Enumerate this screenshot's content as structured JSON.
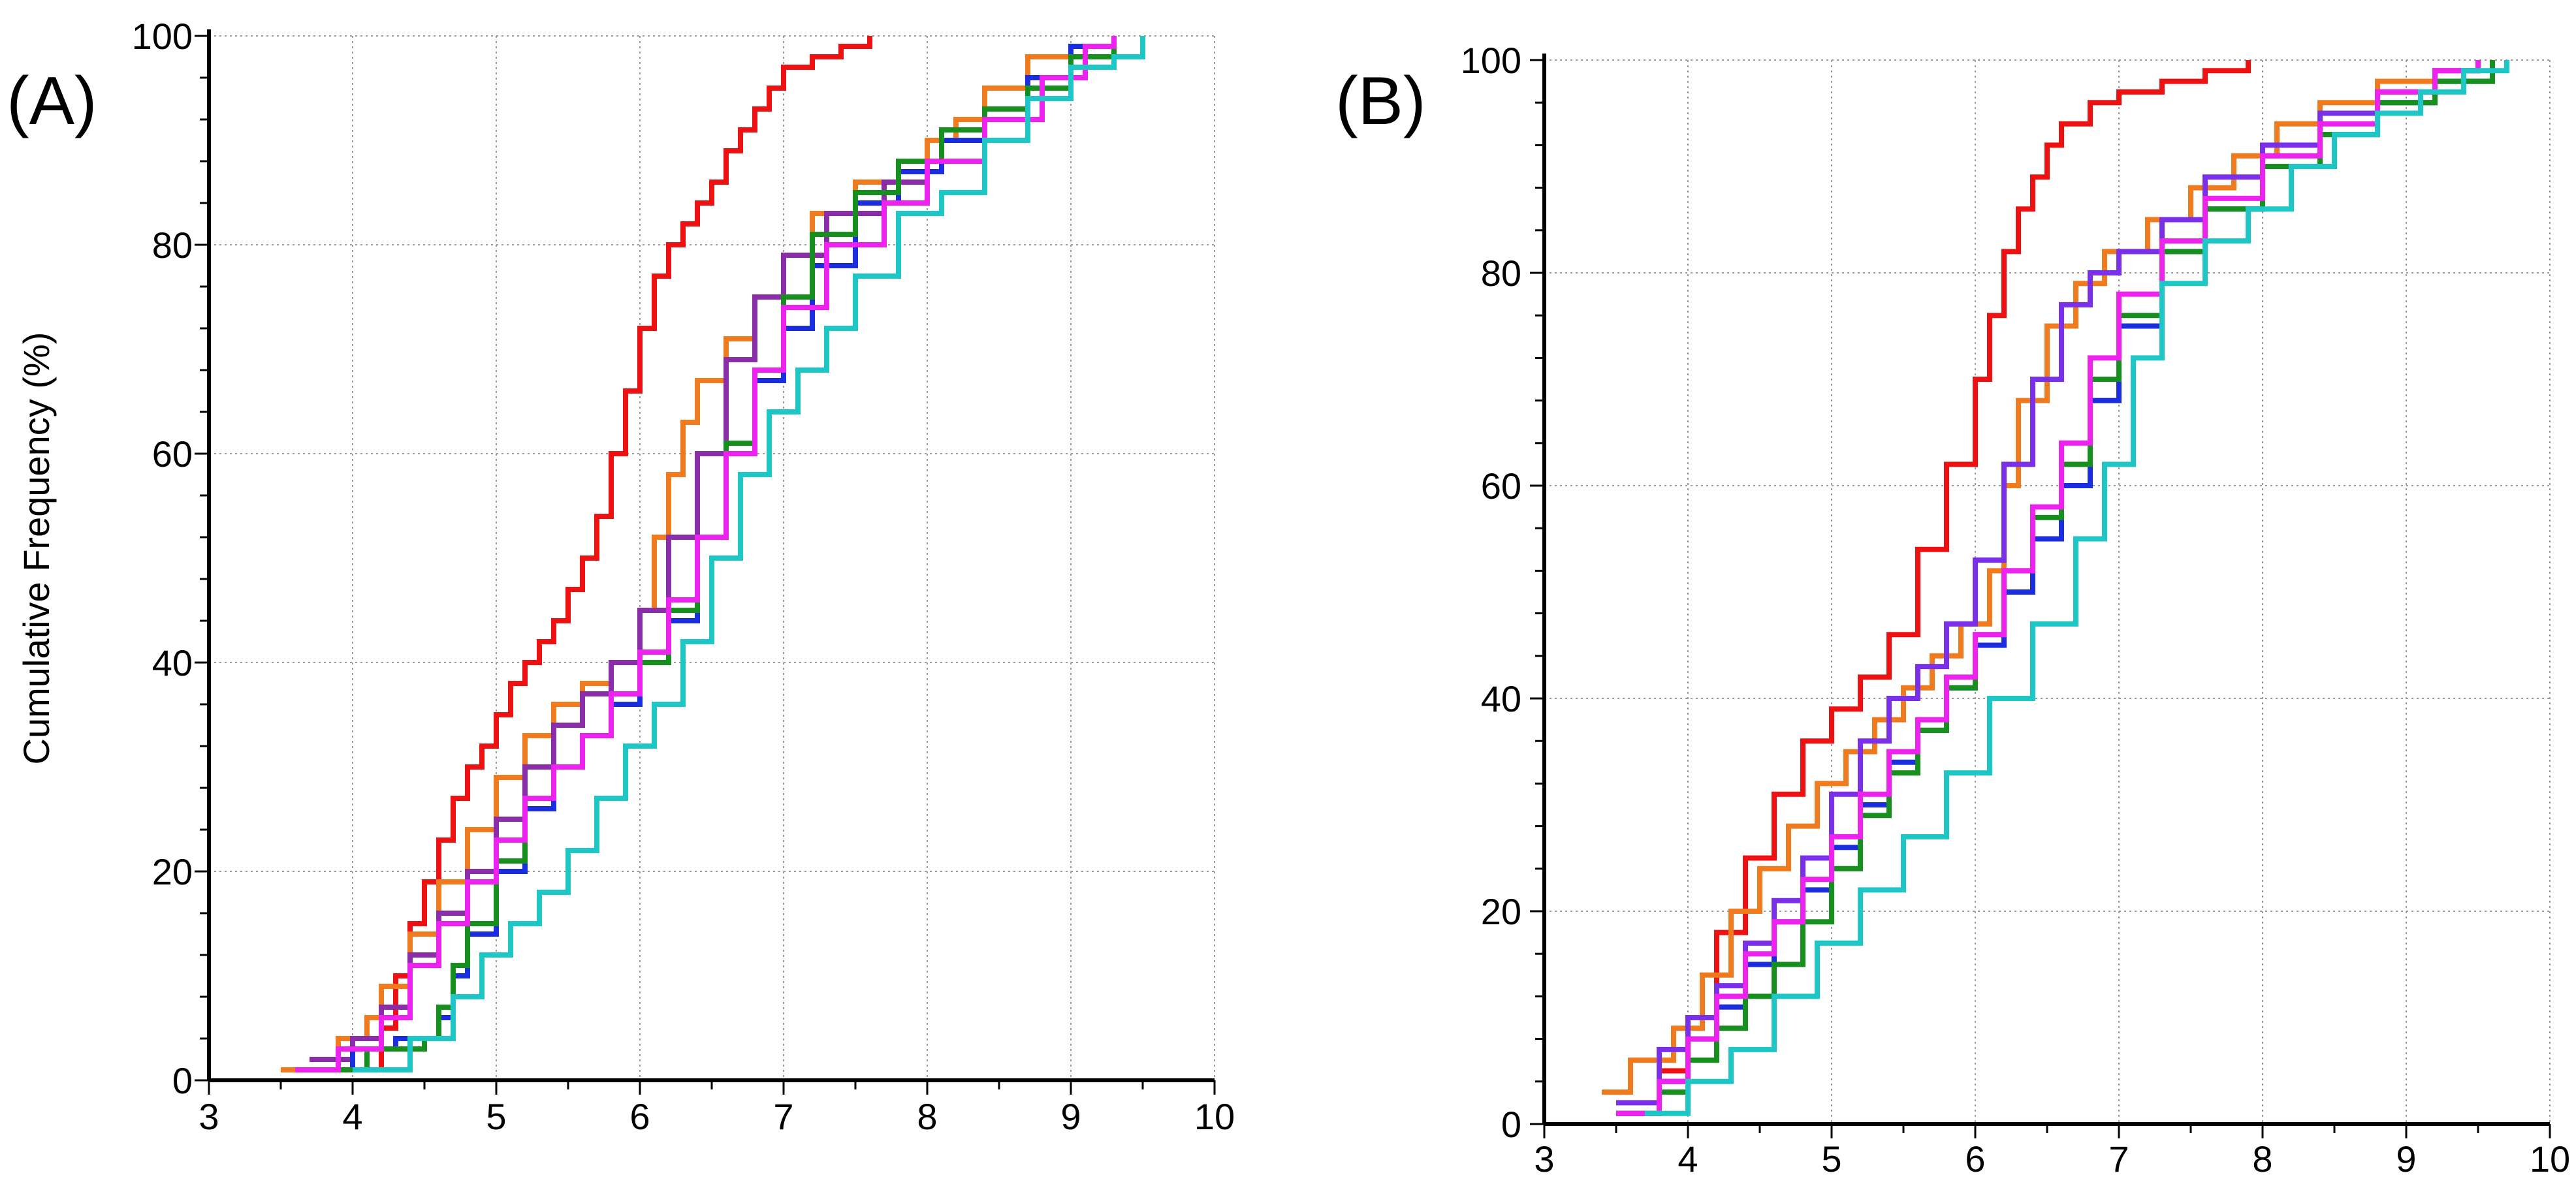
{
  "figure_title": "",
  "chart_data": [
    {
      "type": "line",
      "panel_label": "(A)",
      "xlabel": "",
      "ylabel": "Cumulative Frequency (%)",
      "xlim": [
        3,
        10
      ],
      "ylim": [
        0,
        100
      ],
      "x_ticks": [
        3,
        4,
        5,
        6,
        7,
        8,
        9,
        10
      ],
      "y_ticks": [
        0,
        20,
        40,
        60,
        80,
        100
      ],
      "x_tick_labels": [
        "3",
        "4",
        "5",
        "6",
        "7",
        "8",
        "9",
        "10"
      ],
      "y_tick_labels": [
        "0",
        "20",
        "40",
        "60",
        "80",
        "100"
      ],
      "grid": true,
      "series": [
        {
          "name": "red",
          "color": "#ee1111",
          "x": [
            3.9,
            4.2,
            4.3,
            4.4,
            4.5,
            4.6,
            4.7,
            4.8,
            4.9,
            5.0,
            5.1,
            5.2,
            5.3,
            5.4,
            5.5,
            5.6,
            5.7,
            5.8,
            5.9,
            6.0,
            6.1,
            6.2,
            6.3,
            6.4,
            6.5,
            6.6,
            6.7,
            6.8,
            6.9,
            7.0,
            7.2,
            7.4,
            7.6
          ],
          "y": [
            1,
            5,
            10,
            15,
            19,
            23,
            27,
            30,
            32,
            35,
            38,
            40,
            42,
            44,
            47,
            50,
            54,
            60,
            66,
            72,
            77,
            80,
            82,
            84,
            86,
            89,
            91,
            93,
            95,
            97,
            98,
            99,
            100
          ]
        },
        {
          "name": "orange",
          "color": "#f07a1e",
          "x": [
            3.5,
            3.9,
            4.1,
            4.2,
            4.4,
            4.6,
            4.8,
            5.0,
            5.2,
            5.4,
            5.6,
            5.8,
            6.0,
            6.1,
            6.2,
            6.3,
            6.4,
            6.6,
            6.8,
            7.0,
            7.2,
            7.5,
            7.8,
            8.0,
            8.2,
            8.4,
            8.7,
            9.0,
            9.3
          ],
          "y": [
            1,
            4,
            6,
            9,
            14,
            19,
            24,
            29,
            33,
            36,
            38,
            40,
            45,
            52,
            58,
            63,
            67,
            71,
            75,
            79,
            83,
            86,
            88,
            90,
            92,
            95,
            98,
            99,
            100
          ]
        },
        {
          "name": "purple",
          "color": "#8b2ca8",
          "x": [
            3.7,
            4.0,
            4.2,
            4.4,
            4.6,
            4.8,
            5.0,
            5.2,
            5.4,
            5.6,
            5.8,
            6.0,
            6.2,
            6.4,
            6.6,
            6.8,
            7.0,
            7.3,
            7.7,
            8.0,
            8.4,
            8.8,
            9.1,
            9.3
          ],
          "y": [
            2,
            4,
            7,
            12,
            16,
            20,
            25,
            30,
            34,
            37,
            40,
            45,
            52,
            60,
            69,
            75,
            79,
            83,
            86,
            88,
            92,
            96,
            99,
            100
          ]
        },
        {
          "name": "blue",
          "color": "#1a2ee0",
          "x": [
            3.8,
            4.0,
            4.3,
            4.6,
            4.7,
            4.8,
            5.0,
            5.2,
            5.4,
            5.6,
            5.8,
            6.0,
            6.2,
            6.4,
            6.6,
            6.8,
            7.0,
            7.2,
            7.5,
            7.8,
            8.1,
            8.4,
            8.7,
            9.0,
            9.3
          ],
          "y": [
            1,
            3,
            4,
            6,
            10,
            14,
            20,
            26,
            30,
            33,
            36,
            40,
            44,
            52,
            60,
            67,
            72,
            78,
            84,
            87,
            90,
            93,
            96,
            99,
            100
          ]
        },
        {
          "name": "green",
          "color": "#178f1f",
          "x": [
            3.9,
            4.1,
            4.3,
            4.5,
            4.6,
            4.7,
            4.8,
            5.0,
            5.2,
            5.4,
            5.6,
            5.8,
            6.0,
            6.2,
            6.4,
            6.6,
            6.8,
            7.0,
            7.2,
            7.5,
            7.8,
            8.1,
            8.4,
            8.7,
            9.0,
            9.3
          ],
          "y": [
            1,
            3,
            3,
            4,
            7,
            11,
            15,
            21,
            27,
            30,
            33,
            37,
            40,
            45,
            52,
            61,
            68,
            75,
            81,
            85,
            88,
            91,
            93,
            95,
            98,
            100
          ]
        },
        {
          "name": "magenta",
          "color": "#ee22ee",
          "x": [
            3.6,
            3.9,
            4.2,
            4.4,
            4.6,
            4.8,
            5.0,
            5.2,
            5.4,
            5.6,
            5.8,
            6.0,
            6.2,
            6.4,
            6.6,
            6.8,
            7.0,
            7.3,
            7.7,
            8.0,
            8.4,
            8.8,
            9.1,
            9.3
          ],
          "y": [
            1,
            3,
            6,
            11,
            15,
            19,
            23,
            27,
            30,
            33,
            37,
            41,
            46,
            52,
            60,
            68,
            74,
            80,
            84,
            88,
            92,
            96,
            99,
            100
          ]
        },
        {
          "name": "cyan",
          "color": "#1ec6c6",
          "x": [
            4.0,
            4.4,
            4.7,
            4.9,
            5.1,
            5.3,
            5.5,
            5.7,
            5.9,
            6.1,
            6.3,
            6.5,
            6.7,
            6.9,
            7.1,
            7.3,
            7.5,
            7.8,
            8.1,
            8.4,
            8.7,
            9.0,
            9.3,
            9.5
          ],
          "y": [
            1,
            4,
            8,
            12,
            15,
            18,
            22,
            27,
            32,
            36,
            42,
            50,
            58,
            64,
            68,
            72,
            77,
            83,
            85,
            90,
            94,
            97,
            98,
            100
          ]
        }
      ]
    },
    {
      "type": "line",
      "panel_label": "(B)",
      "xlabel": "",
      "ylabel": "",
      "xlim": [
        3,
        10
      ],
      "ylim": [
        0,
        100
      ],
      "x_ticks": [
        3,
        4,
        5,
        6,
        7,
        8,
        9,
        10
      ],
      "y_ticks": [
        0,
        20,
        40,
        60,
        80,
        100
      ],
      "x_tick_labels": [
        "3",
        "4",
        "5",
        "6",
        "7",
        "8",
        "9",
        "10"
      ],
      "y_tick_labels": [
        "0",
        "20",
        "40",
        "60",
        "80",
        "100"
      ],
      "grid": true,
      "series": [
        {
          "name": "red",
          "color": "#ee1111",
          "x": [
            3.5,
            3.8,
            4.0,
            4.2,
            4.4,
            4.6,
            4.8,
            5.0,
            5.2,
            5.4,
            5.6,
            5.8,
            6.0,
            6.1,
            6.2,
            6.3,
            6.4,
            6.5,
            6.6,
            6.8,
            7.0,
            7.3,
            7.6,
            7.9
          ],
          "y": [
            1,
            5,
            10,
            18,
            25,
            31,
            36,
            39,
            42,
            46,
            54,
            62,
            70,
            76,
            82,
            86,
            89,
            92,
            94,
            96,
            97,
            98,
            99,
            100
          ]
        },
        {
          "name": "orange",
          "color": "#f07a1e",
          "x": [
            3.4,
            3.6,
            3.9,
            4.1,
            4.3,
            4.5,
            4.7,
            4.9,
            5.1,
            5.3,
            5.5,
            5.7,
            5.9,
            6.1,
            6.2,
            6.3,
            6.5,
            6.7,
            6.9,
            7.2,
            7.5,
            7.8,
            8.1,
            8.4,
            8.8,
            9.2,
            9.5
          ],
          "y": [
            3,
            6,
            9,
            14,
            20,
            24,
            28,
            32,
            35,
            38,
            41,
            44,
            47,
            52,
            60,
            68,
            75,
            79,
            82,
            85,
            88,
            91,
            94,
            96,
            98,
            99,
            100
          ]
        },
        {
          "name": "purple",
          "color": "#7a2fe8",
          "x": [
            3.5,
            3.8,
            4.0,
            4.2,
            4.4,
            4.6,
            4.8,
            5.0,
            5.2,
            5.4,
            5.6,
            5.8,
            6.0,
            6.2,
            6.4,
            6.6,
            6.8,
            7.0,
            7.3,
            7.6,
            8.0,
            8.4,
            8.8,
            9.2,
            9.5
          ],
          "y": [
            2,
            7,
            10,
            13,
            17,
            21,
            25,
            31,
            36,
            40,
            43,
            47,
            53,
            62,
            70,
            77,
            80,
            82,
            85,
            89,
            92,
            95,
            97,
            99,
            100
          ]
        },
        {
          "name": "blue",
          "color": "#1a2ee0",
          "x": [
            3.5,
            3.8,
            4.0,
            4.2,
            4.4,
            4.6,
            4.8,
            5.0,
            5.2,
            5.4,
            5.6,
            5.8,
            6.0,
            6.2,
            6.4,
            6.6,
            6.8,
            7.0,
            7.3,
            7.6,
            8.0,
            8.4,
            8.8,
            9.2,
            9.6
          ],
          "y": [
            1,
            4,
            8,
            11,
            15,
            19,
            22,
            26,
            30,
            34,
            37,
            41,
            45,
            50,
            55,
            60,
            68,
            75,
            82,
            86,
            90,
            93,
            96,
            98,
            100
          ]
        },
        {
          "name": "green",
          "color": "#178f1f",
          "x": [
            3.5,
            3.8,
            4.0,
            4.2,
            4.4,
            4.6,
            4.8,
            5.0,
            5.2,
            5.4,
            5.6,
            5.8,
            6.0,
            6.2,
            6.4,
            6.6,
            6.8,
            7.0,
            7.3,
            7.6,
            8.0,
            8.4,
            8.8,
            9.2,
            9.6
          ],
          "y": [
            1,
            3,
            6,
            9,
            12,
            15,
            19,
            24,
            29,
            33,
            37,
            41,
            46,
            52,
            57,
            62,
            70,
            76,
            82,
            86,
            90,
            93,
            96,
            98,
            100
          ]
        },
        {
          "name": "magenta",
          "color": "#ee22ee",
          "x": [
            3.5,
            3.8,
            4.0,
            4.2,
            4.4,
            4.6,
            4.8,
            5.0,
            5.2,
            5.4,
            5.6,
            5.8,
            6.0,
            6.2,
            6.4,
            6.6,
            6.8,
            7.0,
            7.3,
            7.6,
            8.0,
            8.4,
            8.8,
            9.2,
            9.5
          ],
          "y": [
            1,
            4,
            8,
            12,
            16,
            19,
            23,
            27,
            31,
            35,
            38,
            42,
            46,
            52,
            58,
            64,
            72,
            78,
            83,
            87,
            91,
            94,
            97,
            99,
            100
          ]
        },
        {
          "name": "cyan",
          "color": "#1ec6c6",
          "x": [
            3.7,
            4.0,
            4.3,
            4.6,
            4.9,
            5.2,
            5.5,
            5.8,
            6.1,
            6.4,
            6.7,
            6.9,
            7.1,
            7.3,
            7.6,
            7.9,
            8.2,
            8.5,
            8.8,
            9.1,
            9.4,
            9.7
          ],
          "y": [
            1,
            4,
            7,
            12,
            17,
            22,
            27,
            33,
            40,
            47,
            55,
            62,
            72,
            79,
            83,
            86,
            90,
            93,
            95,
            97,
            99,
            100
          ]
        }
      ]
    }
  ]
}
